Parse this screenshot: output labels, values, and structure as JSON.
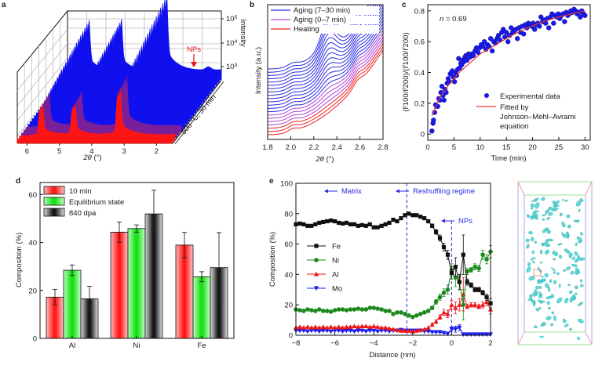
{
  "chart_data": [
    {
      "id": "a",
      "type": "area",
      "panel_label": "a",
      "title": "",
      "xlabel": "2θ (°)",
      "ylabel": "Intensity",
      "depth_label": "500 °C, 30 min",
      "x_ticks": [
        "6",
        "5",
        "4",
        "3",
        "2"
      ],
      "z_ticks": [
        "10^3",
        "10^4",
        "10^5"
      ],
      "z_tick_labels": [
        {
          "base": "10",
          "exp": "3"
        },
        {
          "base": "10",
          "exp": "4"
        },
        {
          "base": "10",
          "exp": "5"
        }
      ],
      "xlim": [
        6.3,
        1.5
      ],
      "annotation": {
        "text": "NPs",
        "x": 1.9,
        "color": "#e8141b"
      },
      "peaks_2theta": [
        5.6,
        4.6,
        3.2
      ],
      "series_colors": {
        "heating": "#ff1414",
        "aging_early": "#7a1f9a",
        "aging_late": "#1010ee"
      },
      "grid": true
    },
    {
      "id": "b",
      "type": "line",
      "panel_label": "b",
      "xlabel": "2θ (°)",
      "ylabel": "Intensity (a.u.)",
      "xlim": [
        1.8,
        2.8
      ],
      "x_ticks": [
        "1.8",
        "2.0",
        "2.2",
        "2.4",
        "2.6",
        "2.8"
      ],
      "legend": [
        {
          "label": "Aging (7–30 min)",
          "color": "#2a2ae6"
        },
        {
          "label": "Aging (0–7 min)",
          "color": "#b040d8"
        },
        {
          "label": "Heating",
          "color": "#ee2020"
        }
      ],
      "legend_position": "top-left",
      "groups": [
        {
          "name": "Heating",
          "count": 3,
          "color": "#ee2020"
        },
        {
          "name": "Aging (0–7 min)",
          "count": 4,
          "color": "#b040d8"
        },
        {
          "name": "Aging (7–30 min)",
          "count": 14,
          "color": "#2a2ae6"
        }
      ],
      "feature_peak_2theta": 2.33
    },
    {
      "id": "c",
      "type": "scatter",
      "panel_label": "c",
      "xlabel": "Time (min)",
      "ylabel": "(I^t100/I^t200)/(I^f100/I^f200)",
      "ylabel_parts": {
        "open": "(I",
        "t1": "t",
        "mid1": "100/I",
        "t2": "t",
        "mid2": "200)/(I",
        "f1": "f",
        "mid3": "100/I",
        "f2": "f",
        "end": "200)"
      },
      "xlim": [
        0,
        31
      ],
      "ylim": [
        -0.04,
        0.84
      ],
      "x_ticks": [
        "0",
        "5",
        "10",
        "15",
        "20",
        "25",
        "30"
      ],
      "y_ticks": [
        "0",
        "0.2",
        "0.4",
        "0.6",
        "0.8"
      ],
      "annotation": {
        "prefix": "n",
        "text": " = 0.69"
      },
      "legend": [
        {
          "label": "Experimental data",
          "marker": "circle",
          "color": "#1a1ae6"
        },
        {
          "label": "Fitted by",
          "label2": "Johnson–Mehl–Avrami",
          "label3": "equation",
          "marker": "line",
          "color": "#ee3333"
        }
      ],
      "legend_position": "center-right",
      "fit": {
        "n": 0.69,
        "x": [
          0.8,
          2,
          4,
          6,
          8,
          10,
          13,
          16,
          19,
          22,
          25,
          28,
          30
        ],
        "y": [
          0.12,
          0.22,
          0.32,
          0.4,
          0.46,
          0.52,
          0.58,
          0.64,
          0.69,
          0.73,
          0.76,
          0.785,
          0.8
        ]
      },
      "points": {
        "x": [
          0.8,
          1.0,
          1.1,
          1.3,
          1.5,
          1.7,
          1.9,
          2.1,
          2.3,
          2.5,
          2.7,
          2.9,
          3.1,
          3.3,
          3.5,
          3.7,
          3.9,
          4.1,
          4.3,
          4.5,
          4.7,
          4.9,
          5.1,
          5.3,
          5.5,
          5.7,
          5.9,
          6.1,
          6.3,
          6.5,
          6.7,
          6.9,
          7.1,
          7.3,
          7.5,
          7.8,
          8.1,
          8.4,
          8.7,
          9.0,
          9.3,
          9.6,
          9.9,
          10.2,
          10.5,
          10.8,
          11.1,
          11.4,
          11.7,
          12.0,
          12.3,
          12.6,
          12.9,
          13.2,
          13.5,
          13.8,
          14.1,
          14.4,
          14.7,
          15.0,
          15.3,
          15.6,
          15.9,
          16.2,
          16.5,
          16.8,
          17.1,
          17.4,
          17.7,
          18.0,
          18.3,
          18.6,
          18.9,
          19.2,
          19.5,
          19.8,
          20.1,
          20.4,
          20.7,
          21.0,
          21.3,
          21.6,
          21.9,
          22.2,
          22.5,
          22.8,
          23.1,
          23.4,
          23.7,
          24.0,
          24.3,
          24.6,
          24.9,
          25.2,
          25.5,
          25.8,
          26.1,
          26.4,
          26.7,
          27.0,
          27.3,
          27.6,
          27.9,
          28.2,
          28.5,
          28.8,
          29.1,
          29.4,
          29.7,
          30.0
        ],
        "y": [
          0.02,
          0.07,
          0.09,
          0.14,
          0.19,
          0.18,
          0.18,
          0.23,
          0.22,
          0.27,
          0.31,
          0.25,
          0.22,
          0.29,
          0.27,
          0.33,
          0.36,
          0.34,
          0.39,
          0.4,
          0.41,
          0.37,
          0.34,
          0.4,
          0.38,
          0.42,
          0.49,
          0.43,
          0.46,
          0.45,
          0.48,
          0.47,
          0.5,
          0.51,
          0.48,
          0.52,
          0.5,
          0.52,
          0.51,
          0.54,
          0.56,
          0.53,
          0.56,
          0.58,
          0.57,
          0.6,
          0.55,
          0.58,
          0.57,
          0.62,
          0.54,
          0.6,
          0.59,
          0.62,
          0.64,
          0.61,
          0.66,
          0.68,
          0.63,
          0.66,
          0.6,
          0.64,
          0.69,
          0.66,
          0.67,
          0.68,
          0.62,
          0.69,
          0.66,
          0.7,
          0.65,
          0.71,
          0.69,
          0.72,
          0.71,
          0.7,
          0.72,
          0.68,
          0.71,
          0.72,
          0.7,
          0.76,
          0.73,
          0.74,
          0.72,
          0.75,
          0.69,
          0.76,
          0.78,
          0.72,
          0.77,
          0.76,
          0.78,
          0.75,
          0.77,
          0.78,
          0.73,
          0.79,
          0.77,
          0.78,
          0.8,
          0.79,
          0.81,
          0.8,
          0.78,
          0.79,
          0.76,
          0.8,
          0.78,
          0.77
        ]
      }
    },
    {
      "id": "d",
      "type": "bar",
      "panel_label": "d",
      "xlabel": "",
      "ylabel": "Composition (%)",
      "ylim": [
        0,
        65
      ],
      "y_ticks": [
        "0",
        "20",
        "40",
        "60"
      ],
      "categories": [
        "Al",
        "Ni",
        "Fe"
      ],
      "series": [
        {
          "name": "10 min",
          "color": "#ff2020",
          "values": [
            17.2,
            44.3,
            38.9
          ],
          "errors": [
            3.2,
            4.2,
            5.3
          ]
        },
        {
          "name": "Equilibrium state",
          "color": "#20e020",
          "values": [
            28.4,
            45.8,
            25.7
          ],
          "errors": [
            2.2,
            1.5,
            2.1
          ]
        },
        {
          "name": "840 dpa",
          "color": "#202020",
          "values": [
            16.5,
            51.9,
            29.5
          ],
          "errors": [
            5.2,
            9.9,
            14.6
          ]
        }
      ],
      "legend_position": "top-left"
    },
    {
      "id": "e",
      "type": "line",
      "panel_label": "e",
      "xlabel": "Distance (nm)",
      "ylabel": "Composition (%)",
      "xlim": [
        -8,
        2
      ],
      "ylim": [
        0,
        100
      ],
      "x_ticks": [
        "−8",
        "−6",
        "−4",
        "−2",
        "0",
        "2"
      ],
      "y_ticks": [
        "0",
        "20",
        "40",
        "60",
        "80",
        "100"
      ],
      "annotations": [
        {
          "text": "Matrix",
          "arrow": "←"
        },
        {
          "text": "Reshuffling regime",
          "arrow": "←"
        },
        {
          "text": "NPs",
          "arrow": "←"
        }
      ],
      "vlines": [
        -2.3,
        0.0
      ],
      "legend_position": "center-left",
      "x": [
        -8.0,
        -7.8,
        -7.6,
        -7.4,
        -7.2,
        -7.0,
        -6.8,
        -6.6,
        -6.4,
        -6.2,
        -6.0,
        -5.8,
        -5.6,
        -5.4,
        -5.2,
        -5.0,
        -4.8,
        -4.6,
        -4.4,
        -4.2,
        -4.0,
        -3.8,
        -3.6,
        -3.4,
        -3.2,
        -3.0,
        -2.8,
        -2.6,
        -2.4,
        -2.2,
        -2.0,
        -1.8,
        -1.6,
        -1.4,
        -1.2,
        -1.0,
        -0.8,
        -0.6,
        -0.4,
        -0.2,
        0.0,
        0.2,
        0.4,
        0.6,
        0.8,
        1.0,
        1.2,
        1.4,
        1.6,
        1.8,
        2.0
      ],
      "series": [
        {
          "name": "Fe",
          "color": "#111111",
          "marker": "square",
          "values": [
            73,
            73.5,
            73,
            72,
            72,
            73,
            74,
            74.5,
            75,
            75.5,
            75,
            74,
            73.5,
            74,
            73,
            73,
            72,
            72.5,
            72,
            73,
            71,
            71,
            72,
            73,
            74,
            76,
            75,
            77,
            79,
            80,
            79,
            79,
            78,
            77,
            75,
            72,
            68,
            64,
            58,
            53,
            41,
            45,
            35,
            53,
            35,
            33,
            30,
            30,
            28,
            25,
            21
          ],
          "errors": [
            0.5,
            0.5,
            0.5,
            0.5,
            0.5,
            0.5,
            0.5,
            0.5,
            0.5,
            0.5,
            0.5,
            0.5,
            0.5,
            0.5,
            0.5,
            0.5,
            0.5,
            0.5,
            0.5,
            0.5,
            0.5,
            0.5,
            0.5,
            0.5,
            0.5,
            0.5,
            0.5,
            0.5,
            0.5,
            0.6,
            0.6,
            0.6,
            0.7,
            0.8,
            1,
            1.2,
            1.5,
            2,
            2.5,
            3,
            4,
            6,
            5,
            13,
            2,
            1.5,
            1.5,
            1.5,
            1.5,
            2,
            3
          ]
        },
        {
          "name": "Ni",
          "color": "#1e8a1e",
          "marker": "circle",
          "values": [
            17,
            16.5,
            16,
            17,
            16.5,
            16,
            17,
            16,
            16,
            15.5,
            16.5,
            17,
            17,
            16.5,
            17,
            17,
            17.5,
            17,
            17,
            18,
            18,
            17.5,
            17,
            16,
            16,
            14,
            15,
            15,
            14,
            13,
            12,
            13,
            14,
            15,
            16,
            18,
            22,
            25,
            28,
            30,
            43,
            38,
            35,
            20,
            42,
            43,
            45,
            44,
            53,
            50,
            55
          ],
          "errors": [
            0.5,
            0.5,
            0.5,
            0.5,
            0.5,
            0.5,
            0.5,
            0.5,
            0.5,
            0.5,
            0.5,
            0.5,
            0.5,
            0.5,
            0.5,
            0.5,
            0.5,
            0.5,
            0.5,
            0.5,
            0.5,
            0.5,
            0.5,
            0.5,
            0.5,
            0.5,
            0.5,
            0.5,
            0.5,
            0.6,
            0.6,
            0.6,
            0.7,
            0.8,
            1,
            1.2,
            1.5,
            2,
            2.5,
            3,
            4,
            6,
            5,
            10,
            2,
            1.5,
            2,
            2,
            3,
            3,
            4
          ]
        },
        {
          "name": "Al",
          "color": "#ee1515",
          "marker": "triangle-up",
          "values": [
            5,
            5.5,
            5,
            5.5,
            5,
            5.5,
            5,
            5.5,
            5,
            5.5,
            5,
            5.5,
            5,
            5.5,
            5.5,
            6,
            5.5,
            6,
            6,
            5.5,
            6,
            5.5,
            5,
            5,
            4.5,
            4,
            3.5,
            3,
            3,
            3,
            2.5,
            3,
            3.5,
            4,
            5,
            7,
            9,
            12,
            15,
            14,
            20,
            18,
            20,
            27,
            19,
            20,
            20,
            19,
            20,
            22,
            17
          ],
          "errors": [
            0.4,
            0.4,
            0.4,
            0.4,
            0.4,
            0.4,
            0.4,
            0.4,
            0.4,
            0.4,
            0.4,
            0.4,
            0.4,
            0.4,
            0.4,
            0.4,
            0.4,
            0.4,
            0.4,
            0.4,
            0.4,
            0.4,
            0.4,
            0.4,
            0.4,
            0.4,
            0.4,
            0.4,
            0.4,
            0.5,
            0.5,
            0.5,
            0.6,
            0.7,
            0.8,
            1,
            1.2,
            1.5,
            2,
            2.5,
            3,
            4,
            4,
            11,
            1.5,
            1.5,
            1.5,
            1.5,
            2,
            2.5,
            3
          ]
        },
        {
          "name": "Mo",
          "color": "#1a1aee",
          "marker": "triangle-down",
          "values": [
            3,
            3,
            3,
            2.5,
            3,
            3,
            2.5,
            3,
            3,
            2.5,
            3,
            3,
            2.5,
            3,
            3,
            2.5,
            3,
            3,
            2.5,
            3,
            3,
            2.5,
            3,
            3,
            2.5,
            3,
            3,
            3.5,
            3,
            3,
            3,
            3,
            3,
            2.5,
            2.5,
            2,
            2,
            2,
            1.5,
            1,
            4,
            4,
            5,
            0.5,
            0.5,
            0.5,
            0.5,
            0.5,
            0.5,
            0.5,
            0.5
          ],
          "errors": [
            0.3,
            0.3,
            0.3,
            0.3,
            0.3,
            0.3,
            0.3,
            0.3,
            0.3,
            0.3,
            0.3,
            0.3,
            0.3,
            0.3,
            0.3,
            0.3,
            0.3,
            0.3,
            0.3,
            0.3,
            0.3,
            0.3,
            0.3,
            0.3,
            0.3,
            0.3,
            0.3,
            0.3,
            0.3,
            0.3,
            0.3,
            0.3,
            0.3,
            0.3,
            0.3,
            0.3,
            0.4,
            0.5,
            0.6,
            0.8,
            1.5,
            2,
            2,
            0.3,
            0.2,
            0.2,
            0.2,
            0.2,
            0.2,
            0.2,
            0.2
          ]
        }
      ]
    },
    {
      "id": "f",
      "type": "scatter",
      "panel_label": "",
      "title": "",
      "description": "3D atom-probe reconstruction with isosurfaces",
      "isosurface_color": "#4fd6d6",
      "box_color": "#8c8cf0"
    }
  ]
}
